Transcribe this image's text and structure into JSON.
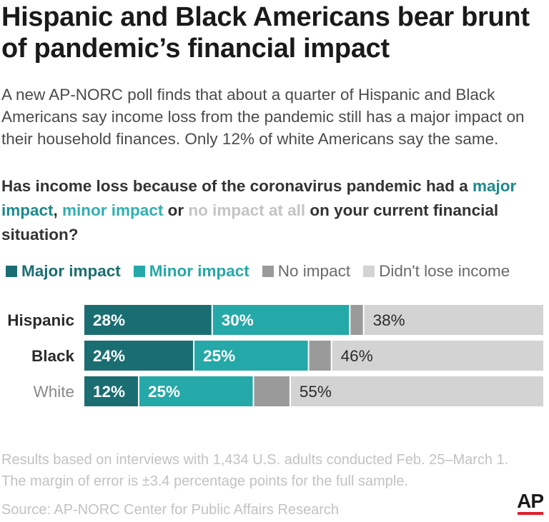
{
  "header": {
    "title": "Hispanic and Black Americans bear brunt of pandemic’s financial impact",
    "subtitle": "A new AP-NORC poll finds that about a quarter of Hispanic and Black Americans say income loss from the pandemic still has a major impact on their household finances. Only 12% of white Americans say the same."
  },
  "question": {
    "part1": "Has income loss because of the coronavirus pandemic had a ",
    "major": "major impact",
    "sep1": ", ",
    "minor": "minor impact",
    "sep2": " or ",
    "none": "no impact at all",
    "part2": " on your current financial situation?"
  },
  "legend": [
    {
      "label": "Major impact",
      "color": "#1a6e72",
      "bold": true
    },
    {
      "label": "Minor impact",
      "color": "#25a8a8",
      "bold": true
    },
    {
      "label": "No impact",
      "color": "#9a9a9a",
      "bold": false
    },
    {
      "label": "Didn't lose income",
      "color": "#d3d3d3",
      "bold": false
    }
  ],
  "chart_data": {
    "type": "bar",
    "orientation": "horizontal",
    "stacked": true,
    "categories": [
      "Hispanic",
      "Black",
      "White"
    ],
    "series": [
      {
        "name": "Major impact",
        "values": [
          28,
          24,
          12
        ],
        "labels": [
          "28%",
          "24%",
          "12%"
        ],
        "color": "#1a6e72"
      },
      {
        "name": "Minor impact",
        "values": [
          30,
          25,
          25
        ],
        "labels": [
          "30%",
          "25%",
          "25%"
        ],
        "color": "#25a8a8"
      },
      {
        "name": "No impact",
        "values": [
          3,
          5,
          8
        ],
        "labels": [
          "",
          "",
          ""
        ],
        "color": "#9a9a9a"
      },
      {
        "name": "Didn't lose income",
        "values": [
          38,
          46,
          55
        ],
        "labels": [
          "38%",
          "46%",
          "55%"
        ],
        "color": "#d3d3d3"
      }
    ],
    "xlim": [
      0,
      100
    ],
    "grid": false,
    "legend_position": "top"
  },
  "footer": {
    "note": "Results based on interviews with 1,434 U.S. adults conducted Feb. 25–March 1. The margin of error is ±3.4 percentage points for the full sample.",
    "source": "Source: AP-NORC Center for Public Affairs Research",
    "logo": "AP"
  }
}
